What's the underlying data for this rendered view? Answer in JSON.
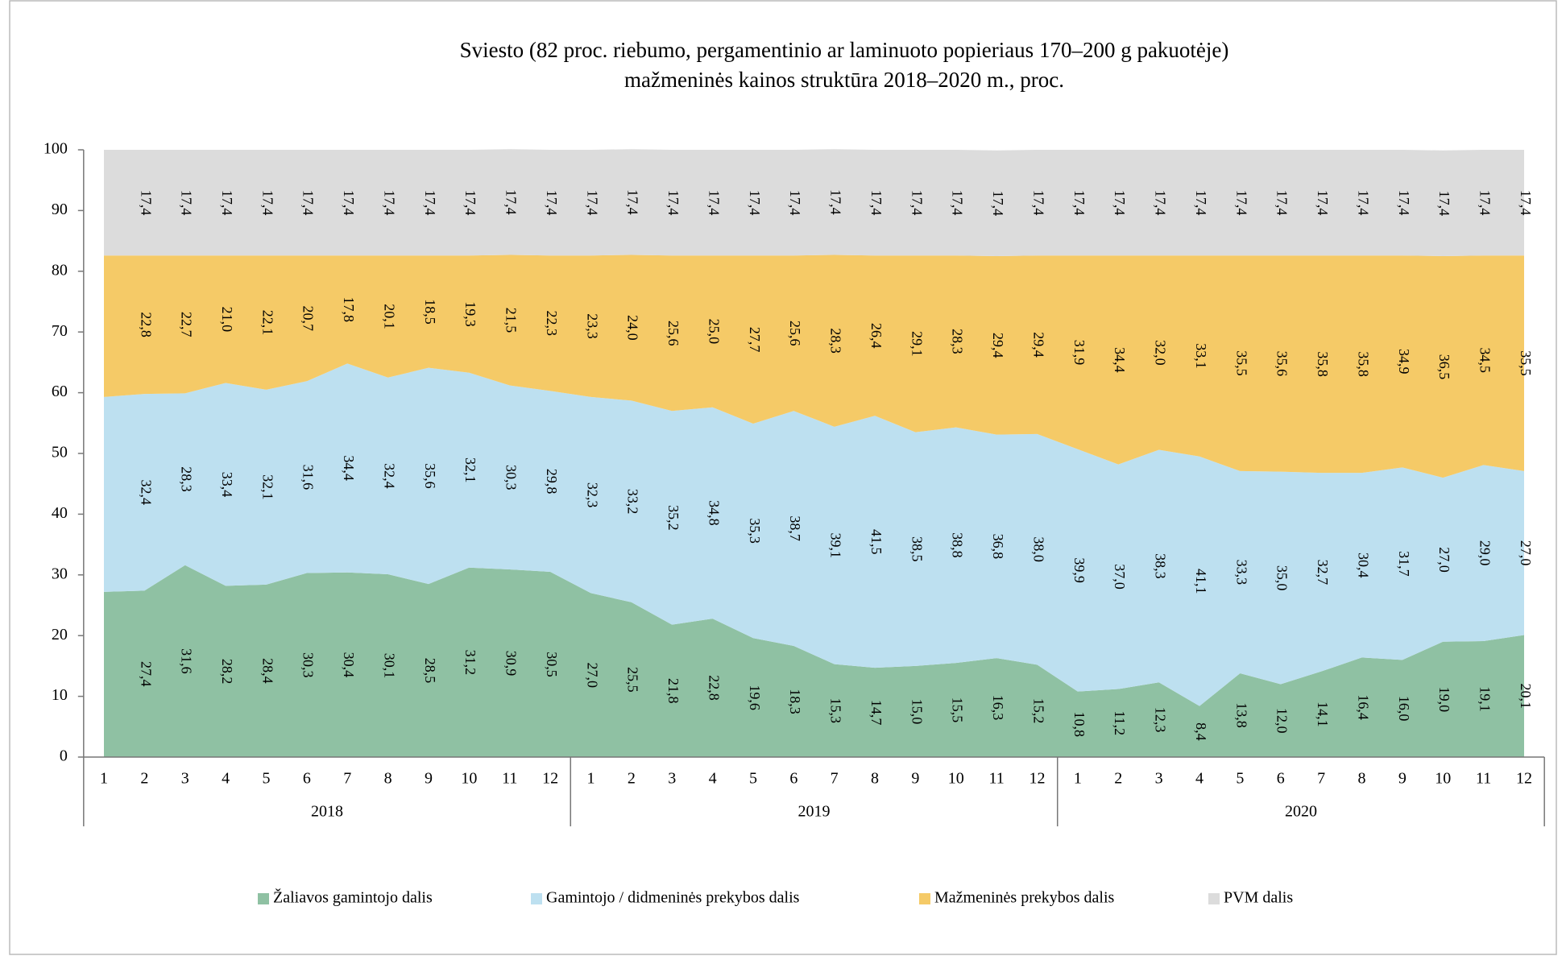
{
  "chart_data": {
    "type": "area",
    "stacked": true,
    "title": [
      "Sviesto (82 proc. riebumo, pergamentinio ar laminuoto popieriaus 170–200 g pakuotėje)",
      "mažmeninės kainos struktūra 2018–2020 m., proc."
    ],
    "categories": [
      "1",
      "2",
      "3",
      "4",
      "5",
      "6",
      "7",
      "8",
      "9",
      "10",
      "11",
      "12",
      "1",
      "2",
      "3",
      "4",
      "5",
      "6",
      "7",
      "8",
      "9",
      "10",
      "11",
      "12",
      "1",
      "2",
      "3",
      "4",
      "5",
      "6",
      "7",
      "8",
      "9",
      "10",
      "11",
      "12"
    ],
    "x_groups": [
      "2018",
      "2019",
      "2020"
    ],
    "ylim": [
      0,
      100
    ],
    "yticks": [
      0,
      10,
      20,
      30,
      40,
      50,
      60,
      70,
      80,
      90,
      100
    ],
    "grid": false,
    "legend": "bottom",
    "series": [
      {
        "name": "Žaliavos gamintojo dalis",
        "color": "#8fc1a3",
        "values": [
          27.2,
          27.4,
          31.6,
          28.2,
          28.4,
          30.3,
          30.4,
          30.1,
          28.5,
          31.2,
          30.9,
          30.5,
          27.0,
          25.5,
          21.8,
          22.8,
          19.6,
          18.3,
          15.3,
          14.7,
          15.0,
          15.5,
          16.3,
          15.2,
          10.8,
          11.2,
          12.3,
          8.4,
          13.8,
          12.0,
          14.1,
          16.4,
          16.0,
          19.0,
          19.1,
          20.1
        ],
        "value_labels": [
          null,
          "27,4",
          "31,6",
          "28,2",
          "28,4",
          "30,3",
          "30,4",
          "30,1",
          "28,5",
          "31,2",
          "30,9",
          "30,5",
          "27,0",
          "25,5",
          "21,8",
          "22,8",
          "19,6",
          "18,3",
          "15,3",
          "14,7",
          "15,0",
          "15,5",
          "16,3",
          "15,2",
          "10,8",
          "11,2",
          "12,3",
          "8,4",
          "13,8",
          "12,0",
          "14,1",
          "16,4",
          "16,0",
          "19,0",
          "19,1",
          "20,1"
        ]
      },
      {
        "name": "Gamintojo / didmeninės prekybos dalis",
        "color": "#bde0f0",
        "values": [
          32.1,
          32.4,
          28.3,
          33.4,
          32.1,
          31.6,
          34.4,
          32.4,
          35.6,
          32.1,
          30.3,
          29.8,
          32.3,
          33.2,
          35.2,
          34.8,
          35.3,
          38.7,
          39.1,
          41.5,
          38.5,
          38.8,
          36.8,
          38.0,
          39.9,
          37.0,
          38.3,
          41.1,
          33.3,
          35.0,
          32.7,
          30.4,
          31.7,
          27.0,
          29.0,
          27.0
        ],
        "value_labels": [
          null,
          "32,4",
          "28,3",
          "33,4",
          "32,1",
          "31,6",
          "34,4",
          "32,4",
          "35,6",
          "32,1",
          "30,3",
          "29,8",
          "32,3",
          "33,2",
          "35,2",
          "34,8",
          "35,3",
          "38,7",
          "39,1",
          "41,5",
          "38,5",
          "38,8",
          "36,8",
          "38,0",
          "39,9",
          "37,0",
          "38,3",
          "41,1",
          "33,3",
          "35,0",
          "32,7",
          "30,4",
          "31,7",
          "27,0",
          "29,0",
          "27,0"
        ]
      },
      {
        "name": "Mažmeninės prekybos dalis",
        "color": "#f5ca67",
        "values": [
          23.3,
          22.8,
          22.7,
          21.0,
          22.1,
          20.7,
          17.8,
          20.1,
          18.5,
          19.3,
          21.5,
          22.3,
          23.3,
          24.0,
          25.6,
          25.0,
          27.7,
          25.6,
          28.3,
          26.4,
          29.1,
          28.3,
          29.4,
          29.4,
          31.9,
          34.4,
          32.0,
          33.1,
          35.5,
          35.6,
          35.8,
          35.8,
          34.9,
          36.5,
          34.5,
          35.5
        ],
        "value_labels": [
          null,
          "22,8",
          "22,7",
          "21,0",
          "22,1",
          "20,7",
          "17,8",
          "20,1",
          "18,5",
          "19,3",
          "21,5",
          "22,3",
          "23,3",
          "24,0",
          "25,6",
          "25,0",
          "27,7",
          "25,6",
          "28,3",
          "26,4",
          "29,1",
          "28,3",
          "29,4",
          "29,4",
          "31,9",
          "34,4",
          "32,0",
          "33,1",
          "35,5",
          "35,6",
          "35,8",
          "35,8",
          "34,9",
          "36,5",
          "34,5",
          "35,5"
        ]
      },
      {
        "name": "PVM dalis",
        "color": "#dcdcdc",
        "values": [
          17.4,
          17.4,
          17.4,
          17.4,
          17.4,
          17.4,
          17.4,
          17.4,
          17.4,
          17.4,
          17.4,
          17.4,
          17.4,
          17.4,
          17.4,
          17.4,
          17.4,
          17.4,
          17.4,
          17.4,
          17.4,
          17.4,
          17.4,
          17.4,
          17.4,
          17.4,
          17.4,
          17.4,
          17.4,
          17.4,
          17.4,
          17.4,
          17.4,
          17.4,
          17.4,
          17.4
        ],
        "value_labels": [
          null,
          "17,4",
          "17,4",
          "17,4",
          "17,4",
          "17,4",
          "17,4",
          "17,4",
          "17,4",
          "17,4",
          "17,4",
          "17,4",
          "17,4",
          "17,4",
          "17,4",
          "17,4",
          "17,4",
          "17,4",
          "17,4",
          "17,4",
          "17,4",
          "17,4",
          "17,4",
          "17,4",
          "17,4",
          "17,4",
          "17,4",
          "17,4",
          "17,4",
          "17,4",
          "17,4",
          "17,4",
          "17,4",
          "17,4",
          "17,4",
          "17,4"
        ]
      }
    ]
  }
}
